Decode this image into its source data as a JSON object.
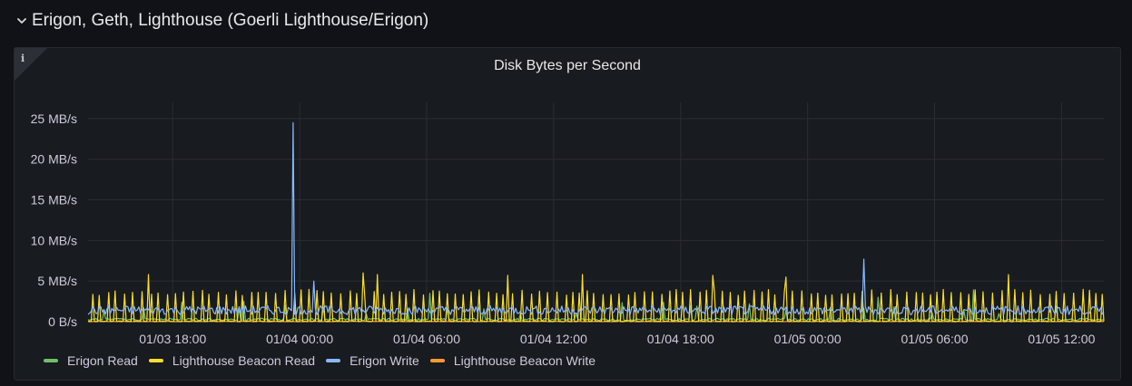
{
  "row": {
    "title": "Erigon, Geth, Lighthouse (Goerli Lighthouse/Erigon)"
  },
  "panel": {
    "title": "Disk Bytes per Second",
    "info_icon": "info-icon"
  },
  "chart_data": {
    "type": "line",
    "title": "Disk Bytes per Second",
    "xlabel": "",
    "ylabel": "",
    "y_unit": "MB/s",
    "ylim": [
      0,
      27
    ],
    "yticks": [
      0,
      5,
      10,
      15,
      20,
      25
    ],
    "ytick_labels": [
      "0 B/s",
      "5 MB/s",
      "10 MB/s",
      "15 MB/s",
      "20 MB/s",
      "25 MB/s"
    ],
    "x_range": [
      "01/03 14:00",
      "01/05 14:00"
    ],
    "xticks": [
      "01/03 18:00",
      "01/04 00:00",
      "01/04 06:00",
      "01/04 12:00",
      "01/04 18:00",
      "01/05 00:00",
      "01/05 06:00",
      "01/05 12:00"
    ],
    "grid": true,
    "legend_position": "bottom",
    "series": [
      {
        "name": "Erigon Read",
        "color": "#73bf69",
        "baseline": 0.3,
        "peaks": [
          [
            "01/03 21:20",
            2.5
          ],
          [
            "01/04 06:10",
            3.5
          ],
          [
            "01/04 08:30",
            3.8
          ],
          [
            "01/04 18:30",
            2.0
          ],
          [
            "01/05 03:20",
            3.0
          ],
          [
            "01/05 07:50",
            3.9
          ]
        ]
      },
      {
        "name": "Lighthouse Beacon Read",
        "color": "#fade2a",
        "baseline": 0.1,
        "spike_typical": 3.8,
        "peaks": [
          [
            "01/03 16:50",
            5.8
          ],
          [
            "01/04 03:00",
            6.0
          ],
          [
            "01/04 03:40",
            5.8
          ],
          [
            "01/04 09:50",
            5.7
          ],
          [
            "01/04 13:20",
            5.8
          ],
          [
            "01/04 19:30",
            5.7
          ],
          [
            "01/04 23:00",
            5.5
          ],
          [
            "01/05 09:30",
            5.8
          ]
        ]
      },
      {
        "name": "Erigon Write",
        "color": "#8ab8ff",
        "baseline": 1.3,
        "peaks": [
          [
            "01/03 23:40",
            24.5
          ],
          [
            "01/04 00:40",
            5.0
          ],
          [
            "01/05 02:40",
            7.7
          ]
        ]
      },
      {
        "name": "Lighthouse Beacon Write",
        "color": "#ff9830",
        "baseline": 0.05,
        "peaks": []
      }
    ]
  }
}
